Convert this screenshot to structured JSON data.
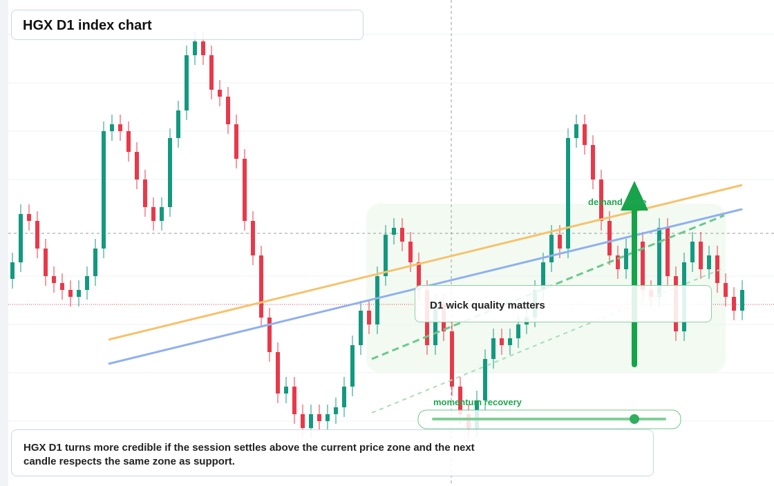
{
  "header": {
    "title": "HGX D1 index chart"
  },
  "chart": {
    "type": "candlestick",
    "ylim": [
      0,
      704
    ],
    "up_color": "#13997f",
    "down_color": "#e8394a",
    "open": [
      300,
      324,
      394,
      384,
      344,
      304,
      294,
      284,
      274,
      284,
      304,
      344,
      514,
      524,
      514,
      484,
      444,
      404,
      384,
      404,
      504,
      544,
      624,
      644,
      624,
      574,
      564,
      524,
      474,
      384,
      334,
      244,
      194,
      134,
      144,
      104,
      84,
      104,
      94,
      104,
      114,
      144,
      204,
      254,
      234,
      304,
      364,
      374,
      354,
      324,
      284,
      204,
      264,
      224,
      144,
      104,
      84,
      124,
      184,
      214,
      204,
      214,
      234,
      244,
      284,
      324,
      364,
      344,
      504,
      524,
      494,
      444,
      384,
      334,
      314,
      344,
      354,
      284,
      274,
      374,
      304,
      224,
      324,
      354,
      314,
      334,
      294,
      274,
      254
    ],
    "high": [
      338,
      408,
      408,
      398,
      358,
      318,
      308,
      298,
      298,
      318,
      358,
      528,
      538,
      538,
      528,
      498,
      458,
      418,
      418,
      518,
      558,
      638,
      658,
      658,
      638,
      588,
      578,
      538,
      488,
      398,
      348,
      258,
      208,
      158,
      158,
      118,
      118,
      118,
      118,
      128,
      158,
      218,
      268,
      268,
      318,
      378,
      388,
      388,
      368,
      338,
      298,
      278,
      278,
      238,
      158,
      118,
      138,
      198,
      228,
      228,
      228,
      248,
      258,
      298,
      338,
      378,
      378,
      518,
      538,
      538,
      508,
      458,
      398,
      348,
      358,
      368,
      368,
      298,
      388,
      388,
      318,
      338,
      368,
      368,
      348,
      348,
      308,
      288,
      298
    ],
    "low": [
      286,
      310,
      370,
      330,
      290,
      280,
      270,
      260,
      260,
      270,
      290,
      330,
      500,
      500,
      470,
      430,
      390,
      370,
      370,
      390,
      490,
      530,
      610,
      610,
      560,
      550,
      510,
      460,
      370,
      320,
      230,
      180,
      120,
      120,
      90,
      70,
      70,
      80,
      80,
      90,
      100,
      130,
      190,
      220,
      220,
      290,
      350,
      340,
      310,
      270,
      190,
      190,
      210,
      130,
      90,
      70,
      70,
      110,
      170,
      190,
      190,
      200,
      220,
      230,
      270,
      310,
      330,
      330,
      490,
      480,
      430,
      370,
      320,
      300,
      300,
      330,
      270,
      260,
      260,
      290,
      210,
      210,
      310,
      300,
      300,
      280,
      260,
      240,
      240
    ],
    "close": [
      324,
      394,
      384,
      344,
      304,
      294,
      284,
      274,
      284,
      304,
      344,
      514,
      524,
      514,
      484,
      444,
      404,
      384,
      404,
      504,
      544,
      624,
      644,
      624,
      574,
      564,
      524,
      474,
      384,
      334,
      244,
      194,
      134,
      144,
      104,
      84,
      104,
      94,
      104,
      114,
      144,
      204,
      254,
      234,
      304,
      364,
      374,
      354,
      324,
      284,
      204,
      264,
      224,
      144,
      104,
      84,
      124,
      184,
      214,
      204,
      214,
      234,
      244,
      284,
      324,
      364,
      344,
      504,
      524,
      494,
      444,
      384,
      334,
      314,
      344,
      354,
      284,
      274,
      374,
      304,
      224,
      324,
      354,
      314,
      334,
      294,
      274,
      254,
      284
    ]
  },
  "annotations": {
    "wick_note": "D1 wick quality matters",
    "demand": "demand node",
    "momentum": "momentum recovery",
    "summary": "HGX D1 turns more credible if the session settles above the current price zone and the next candle respects the same zone as support."
  }
}
